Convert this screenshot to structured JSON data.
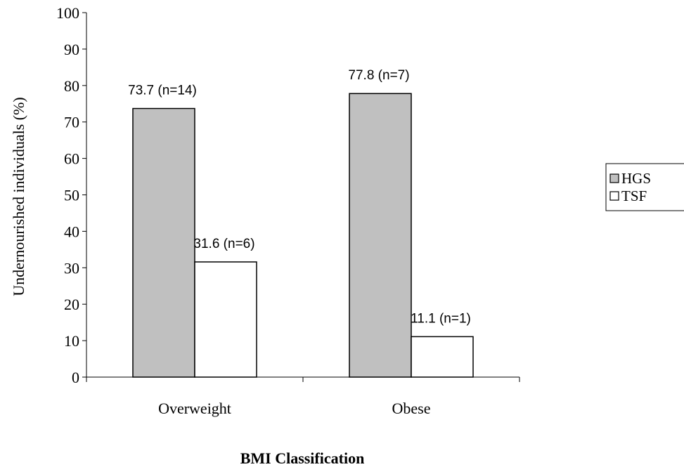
{
  "chart_data": {
    "type": "bar",
    "categories": [
      "Overweight",
      "Obese"
    ],
    "series": [
      {
        "name": "HGS",
        "color": "#c0c0c0",
        "values": [
          73.7,
          77.8
        ],
        "labels": [
          "73.7 (n=14)",
          "77.8 (n=7)"
        ]
      },
      {
        "name": "TSF",
        "color": "#ffffff",
        "values": [
          31.6,
          11.1
        ],
        "labels": [
          "31.6 (n=6)",
          "11.1 (n=1)"
        ]
      }
    ],
    "xlabel": "BMI Classification",
    "ylabel": "Undernourished individuals (%)",
    "ylim": [
      0,
      100
    ],
    "yticks": [
      0,
      10,
      20,
      30,
      40,
      50,
      60,
      70,
      80,
      90,
      100
    ],
    "grid": false,
    "legend_position": "right"
  }
}
